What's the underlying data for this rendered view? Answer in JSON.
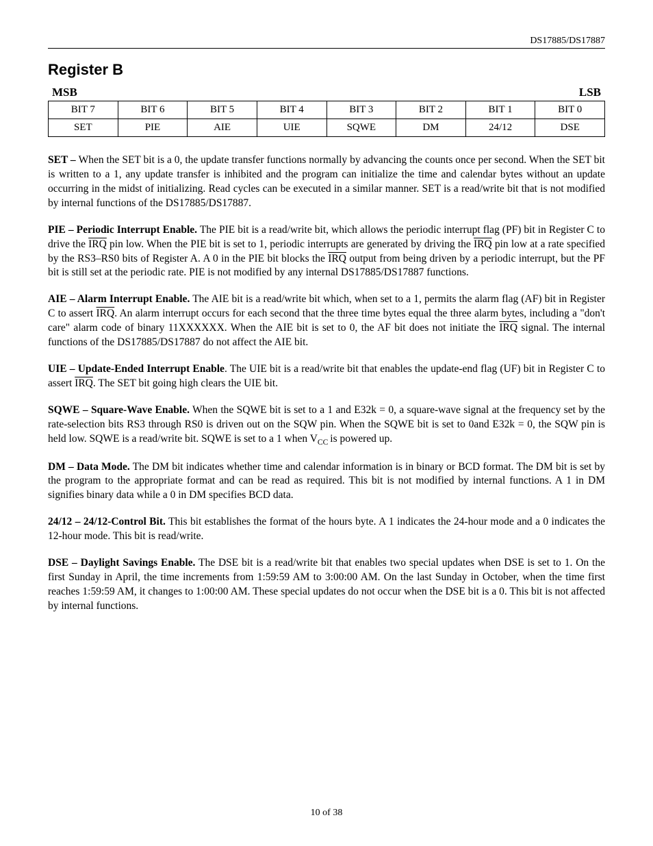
{
  "header": {
    "docId": "DS17885/DS17887"
  },
  "title": "Register B",
  "msbLabel": "MSB",
  "lsbLabel": "LSB",
  "bitsRow1": [
    "BIT 7",
    "BIT 6",
    "BIT 5",
    "BIT 4",
    "BIT 3",
    "BIT 2",
    "BIT 1",
    "BIT 0"
  ],
  "bitsRow2": [
    "SET",
    "PIE",
    "AIE",
    "UIE",
    "SQWE",
    "DM",
    "24/12",
    "DSE"
  ],
  "set": {
    "lead": "SET – ",
    "body": "When the SET bit is a 0, the update transfer functions normally by advancing the counts once per second. When the SET bit is written to a 1, any update transfer is inhibited and the program can initialize the time and calendar bytes without an update occurring in the midst of initializing. Read cycles can be executed in a similar manner. SET is a read/write bit that is not modified by internal functions of the DS17885/DS17887."
  },
  "pie": {
    "lead": "PIE – Periodic Interrupt Enable.",
    "t1": " The PIE bit is a read/write bit, which allows the periodic interrupt flag (PF) bit in Register C to drive the ",
    "irq": "IRQ",
    "t2": " pin low. When the PIE bit is set to 1, periodic interrupts are generated by driving the ",
    "t3": " pin low at a rate specified by the RS3–RS0 bits of Register A. A 0 in the PIE bit blocks the ",
    "t4": " output from being driven by a periodic interrupt, but the PF bit is still set at the periodic rate. PIE is not modified by any internal DS17885/DS17887 functions."
  },
  "aie": {
    "lead": "AIE – Alarm Interrupt Enable.",
    "t1": " The AIE bit is a read/write bit which, when set to a 1, permits the alarm flag (AF) bit in Register C to assert ",
    "irq": "IRQ",
    "t2": ". An alarm interrupt occurs for each second that the three time bytes equal the three alarm bytes, including a \"don't care\" alarm code of binary 11XXXXXX. When the AIE bit is set to 0, the AF bit does not initiate the ",
    "t3": " signal. The internal functions of the DS17885/DS17887 do not affect the AIE bit."
  },
  "uie": {
    "lead": "UIE – Update-Ended Interrupt Enable",
    "t1": ". The UIE bit is a read/write bit that enables the update-end flag (UF) bit in Register C to assert ",
    "irq": "IRQ",
    "t2": ". The SET bit going high clears the UIE bit."
  },
  "sqwe": {
    "lead": "SQWE – Square-Wave Enable.",
    "t1": " When the SQWE bit is set to a 1 and E32k = 0, a square-wave signal at the frequency set by the rate-selection bits RS3 through RS0 is driven out on the SQW pin. When the SQWE bit is set to 0and E32k = 0, the SQW pin is held low. SQWE is a read/write bit. SQWE is set to a 1 when V",
    "vccSub": "CC ",
    "t2": "is powered up."
  },
  "dm": {
    "lead": "DM – Data Mode.",
    "body": " The DM bit indicates whether time and calendar information is in binary or BCD format. The DM bit is set by the program to the appropriate format and can be read as required. This bit is not modified by internal functions. A 1 in DM signifies binary data while a 0 in DM specifies BCD data."
  },
  "h2412": {
    "lead": "24/12 – 24/12-Control Bit.",
    "body": " This bit establishes the format of the hours byte. A 1 indicates the 24-hour mode and a 0 indicates the 12-hour mode. This bit is read/write."
  },
  "dse": {
    "lead": "DSE – Daylight Savings Enable.",
    "body": " The DSE bit is a read/write bit that enables two special updates when DSE is set to 1. On the first Sunday in April, the time increments from 1:59:59 AM to 3:00:00 AM. On the last Sunday in October, when the time first reaches 1:59:59 AM, it changes to 1:00:00 AM. These special updates do not occur when the DSE bit is a 0. This bit is not affected by internal functions."
  },
  "footer": "10 of 38"
}
